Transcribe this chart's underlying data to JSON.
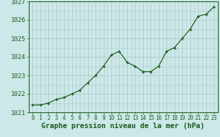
{
  "x": [
    0,
    1,
    2,
    3,
    4,
    5,
    6,
    7,
    8,
    9,
    10,
    11,
    12,
    13,
    14,
    15,
    16,
    17,
    18,
    19,
    20,
    21,
    22,
    23
  ],
  "y": [
    1021.4,
    1021.4,
    1021.5,
    1021.7,
    1021.8,
    1022.0,
    1022.2,
    1022.6,
    1023.0,
    1023.5,
    1024.1,
    1024.3,
    1023.7,
    1023.5,
    1023.2,
    1023.2,
    1023.5,
    1024.3,
    1024.5,
    1025.0,
    1025.5,
    1026.2,
    1026.3,
    1026.7
  ],
  "line_color": "#1a5c1a",
  "marker_color": "#1a5c1a",
  "bg_color": "#cce8e8",
  "grid_color": "#b0c8c8",
  "xlabel": "Graphe pression niveau de la mer (hPa)",
  "ylim_min": 1021.0,
  "ylim_max": 1027.0,
  "yticks": [
    1021,
    1022,
    1023,
    1024,
    1025,
    1026,
    1027
  ],
  "xticks": [
    0,
    1,
    2,
    3,
    4,
    5,
    6,
    7,
    8,
    9,
    10,
    11,
    12,
    13,
    14,
    15,
    16,
    17,
    18,
    19,
    20,
    21,
    22,
    23
  ],
  "xlabel_fontsize": 7.5,
  "ytick_fontsize": 6.5,
  "xtick_fontsize": 5.5,
  "marker_size": 3.5,
  "line_width": 0.9
}
